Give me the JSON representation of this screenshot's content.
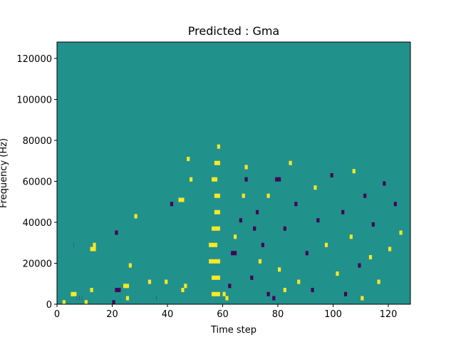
{
  "chart_data": {
    "type": "heatmap",
    "title": "Predicted : Gma",
    "xlabel": "Time step",
    "ylabel": "Frequency (Hz)",
    "xlim": [
      0,
      128
    ],
    "ylim": [
      0,
      128000
    ],
    "xticks": [
      0,
      20,
      40,
      60,
      80,
      100,
      120
    ],
    "yticks": [
      0,
      20000,
      40000,
      60000,
      80000,
      100000,
      120000
    ],
    "colormap": "viridis",
    "grid": false,
    "n_bins": 64,
    "bin_height_hz": 2000,
    "background_value": "0.5",
    "colors": {
      "low": "#440154",
      "mid": "#21918c",
      "high": "#fde725"
    },
    "cells": [
      [
        2,
        0,
        1,
        1
      ],
      [
        5,
        2,
        2,
        1
      ],
      [
        6,
        14,
        0,
        0
      ],
      [
        7,
        1,
        0,
        0
      ],
      [
        8,
        1,
        0,
        0
      ],
      [
        9,
        1,
        0,
        0
      ],
      [
        10,
        0,
        1,
        1
      ],
      [
        12,
        13,
        2,
        1
      ],
      [
        12,
        3,
        1,
        1
      ],
      [
        13,
        14,
        1,
        1
      ],
      [
        20,
        0,
        1,
        0
      ],
      [
        21,
        3,
        2,
        0
      ],
      [
        21,
        17,
        1,
        0
      ],
      [
        24,
        4,
        2,
        1
      ],
      [
        25,
        1,
        1,
        1
      ],
      [
        26,
        9,
        1,
        1
      ],
      [
        28,
        21,
        1,
        1
      ],
      [
        33,
        5,
        1,
        1
      ],
      [
        36,
        1,
        0,
        0
      ],
      [
        39,
        5,
        1,
        1
      ],
      [
        41,
        24,
        1,
        0
      ],
      [
        45,
        3,
        1,
        1
      ],
      [
        46,
        4,
        1,
        1
      ],
      [
        44,
        25,
        2,
        1
      ],
      [
        47,
        35,
        1,
        1
      ],
      [
        48,
        30,
        1,
        1
      ],
      [
        56,
        2,
        3,
        1
      ],
      [
        56,
        6,
        3,
        1
      ],
      [
        55,
        10,
        4,
        1
      ],
      [
        55,
        14,
        3,
        1
      ],
      [
        56,
        18,
        3,
        1
      ],
      [
        57,
        22,
        2,
        1
      ],
      [
        57,
        26,
        2,
        1
      ],
      [
        56,
        30,
        2,
        1
      ],
      [
        57,
        34,
        2,
        1
      ],
      [
        58,
        38,
        1,
        1
      ],
      [
        60,
        2,
        1,
        1
      ],
      [
        61,
        1,
        1,
        1
      ],
      [
        62,
        4,
        1,
        0
      ],
      [
        63,
        12,
        2,
        0
      ],
      [
        64,
        16,
        1,
        1
      ],
      [
        66,
        20,
        1,
        0
      ],
      [
        67,
        26,
        1,
        1
      ],
      [
        68,
        30,
        1,
        0
      ],
      [
        68,
        33,
        1,
        1
      ],
      [
        70,
        6,
        1,
        0
      ],
      [
        71,
        18,
        1,
        0
      ],
      [
        72,
        22,
        1,
        0
      ],
      [
        73,
        10,
        1,
        1
      ],
      [
        74,
        14,
        1,
        0
      ],
      [
        76,
        2,
        1,
        0
      ],
      [
        76,
        26,
        1,
        1
      ],
      [
        78,
        1,
        1,
        0
      ],
      [
        79,
        30,
        2,
        0
      ],
      [
        80,
        8,
        1,
        1
      ],
      [
        82,
        3,
        1,
        1
      ],
      [
        82,
        18,
        1,
        0
      ],
      [
        84,
        34,
        1,
        1
      ],
      [
        86,
        24,
        1,
        0
      ],
      [
        87,
        5,
        1,
        1
      ],
      [
        90,
        12,
        1,
        0
      ],
      [
        92,
        3,
        1,
        0
      ],
      [
        93,
        28,
        1,
        1
      ],
      [
        94,
        20,
        1,
        0
      ],
      [
        97,
        14,
        1,
        1
      ],
      [
        99,
        31,
        1,
        0
      ],
      [
        101,
        7,
        1,
        1
      ],
      [
        103,
        22,
        1,
        0
      ],
      [
        104,
        2,
        1,
        0
      ],
      [
        106,
        16,
        1,
        1
      ],
      [
        107,
        32,
        1,
        1
      ],
      [
        109,
        9,
        1,
        0
      ],
      [
        110,
        1,
        1,
        1
      ],
      [
        111,
        26,
        1,
        0
      ],
      [
        113,
        11,
        1,
        1
      ],
      [
        114,
        19,
        1,
        0
      ],
      [
        116,
        5,
        1,
        1
      ],
      [
        118,
        29,
        1,
        0
      ],
      [
        120,
        13,
        1,
        1
      ],
      [
        122,
        24,
        1,
        0
      ],
      [
        124,
        17,
        1,
        1
      ]
    ]
  }
}
